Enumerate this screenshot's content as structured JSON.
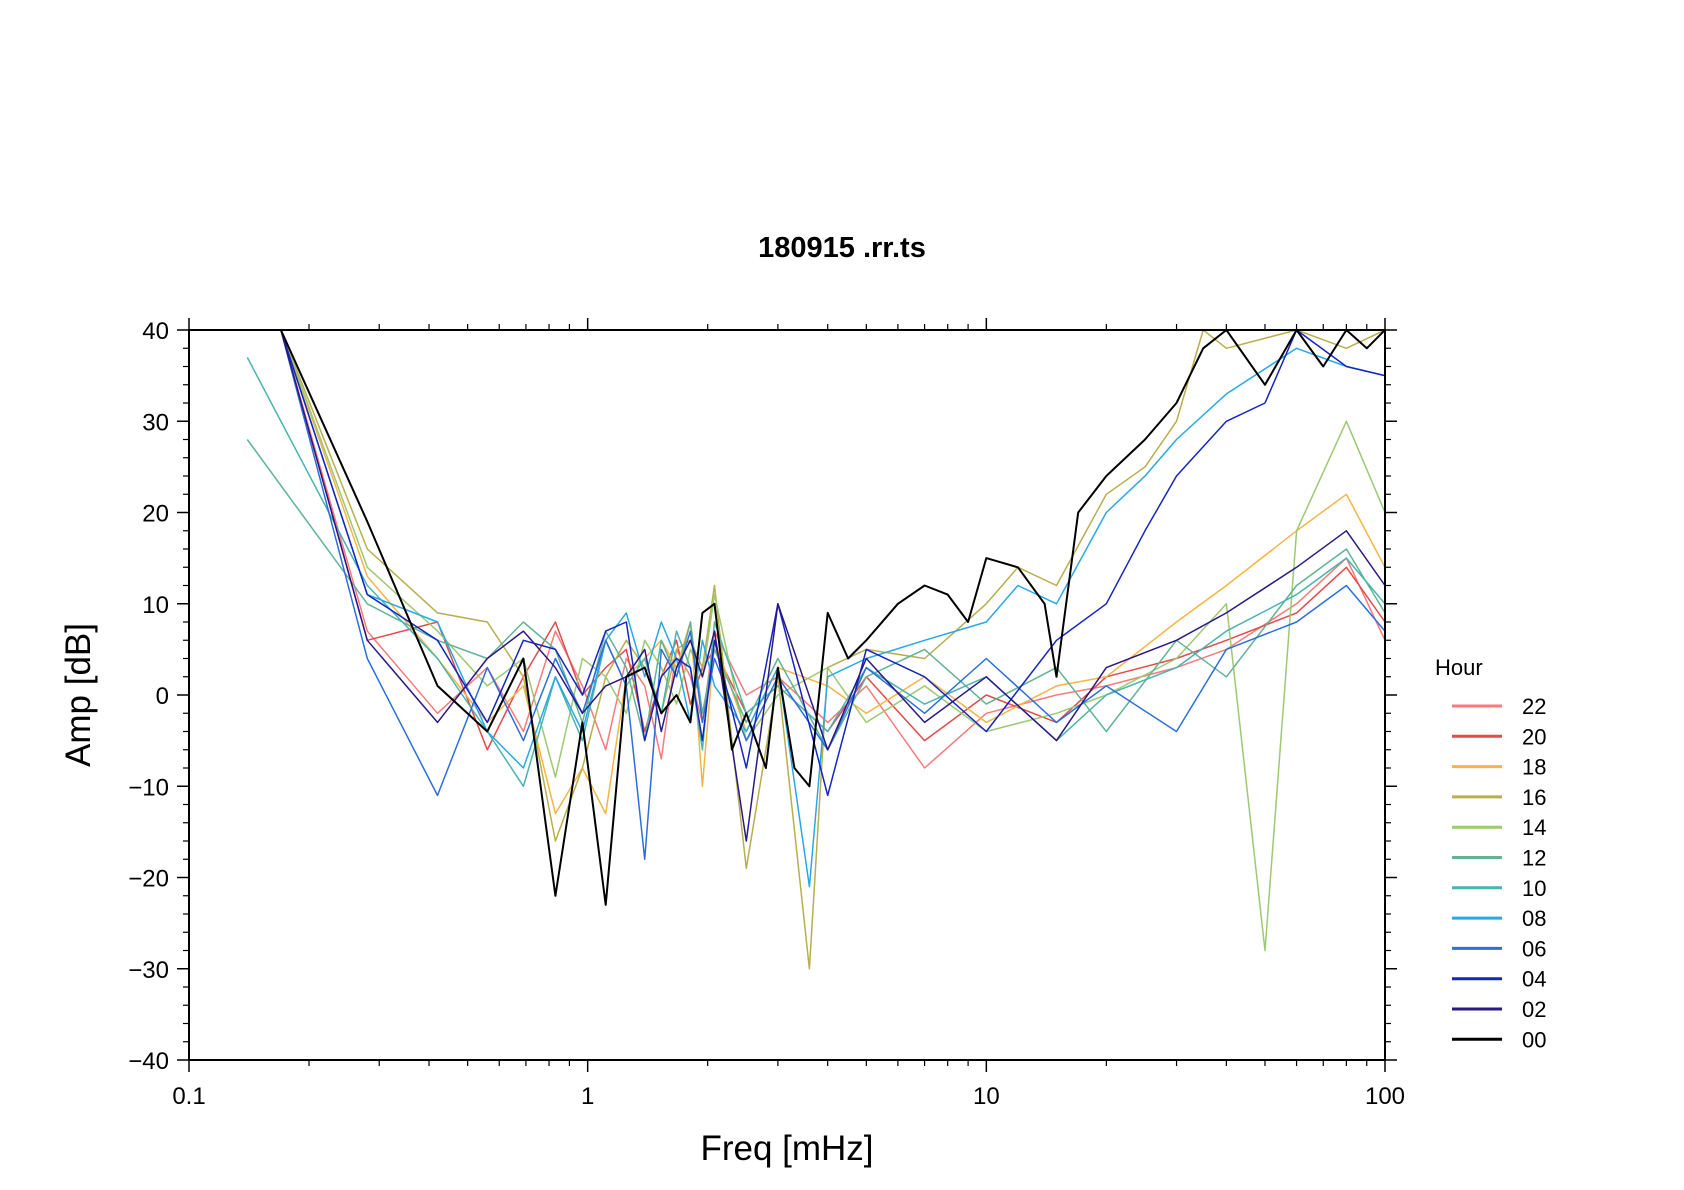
{
  "chart_data": {
    "type": "line",
    "title": "180915 .rr.ts",
    "xlabel": "Freq [mHz]",
    "ylabel": "Amp [dB]",
    "x_scale": "log",
    "xlim": [
      0.1,
      100
    ],
    "ylim": [
      -40,
      40
    ],
    "x_ticks": [
      {
        "value": 0.1,
        "label": "0.1"
      },
      {
        "value": 1,
        "label": "1"
      },
      {
        "value": 10,
        "label": "10"
      },
      {
        "value": 100,
        "label": "100"
      }
    ],
    "y_ticks": [
      {
        "value": 40,
        "label": "40"
      },
      {
        "value": 30,
        "label": "30"
      },
      {
        "value": 20,
        "label": "20"
      },
      {
        "value": 10,
        "label": "10"
      },
      {
        "value": 0,
        "label": "0"
      },
      {
        "value": -10,
        "label": "−10"
      },
      {
        "value": -20,
        "label": "−20"
      },
      {
        "value": -30,
        "label": "−30"
      },
      {
        "value": -40,
        "label": "−40"
      }
    ],
    "grid": false,
    "legend": {
      "title": "Hour",
      "position": "right"
    },
    "series": [
      {
        "name": "22",
        "color": "#f77b7b",
        "x": [
          0.14,
          0.17,
          0.28,
          0.42,
          0.56,
          0.69,
          0.83,
          0.97,
          1.11,
          1.25,
          1.39,
          1.53,
          1.67,
          1.81,
          1.94,
          2.08,
          2.5,
          3.0,
          4.0,
          5.0,
          7.0,
          10.0,
          15.0,
          20.0,
          30.0,
          40.0,
          60.0,
          80.0,
          100.0
        ],
        "y": [
          40,
          40,
          7,
          -2,
          3,
          -4,
          7,
          1,
          -6,
          4,
          1,
          -7,
          5,
          2,
          -3,
          7,
          0,
          2,
          -3,
          1,
          -8,
          -2,
          0,
          1,
          3,
          5,
          10,
          15,
          6
        ]
      },
      {
        "name": "20",
        "color": "#e34a4a",
        "x": [
          0.14,
          0.17,
          0.28,
          0.42,
          0.56,
          0.69,
          0.83,
          0.97,
          1.11,
          1.25,
          1.39,
          1.53,
          1.67,
          1.81,
          1.94,
          2.08,
          2.5,
          3.0,
          4.0,
          5.0,
          7.0,
          10.0,
          15.0,
          20.0,
          30.0,
          40.0,
          60.0,
          80.0,
          100.0
        ],
        "y": [
          40,
          40,
          6,
          8,
          -6,
          2,
          8,
          0,
          3,
          5,
          -4,
          2,
          6,
          -1,
          3,
          5,
          -2,
          1,
          -4,
          2,
          -5,
          0,
          -3,
          2,
          4,
          6,
          9,
          14,
          8
        ]
      },
      {
        "name": "18",
        "color": "#f5b545",
        "x": [
          0.14,
          0.17,
          0.28,
          0.42,
          0.56,
          0.69,
          0.83,
          0.97,
          1.11,
          1.25,
          1.39,
          1.53,
          1.67,
          1.81,
          1.94,
          2.08,
          2.5,
          3.0,
          4.0,
          5.0,
          7.0,
          10.0,
          15.0,
          20.0,
          30.0,
          40.0,
          60.0,
          80.0,
          100.0
        ],
        "y": [
          40,
          40,
          13,
          4,
          -3,
          1,
          -13,
          -8,
          -13,
          2,
          4,
          6,
          3,
          8,
          -10,
          6,
          -4,
          3,
          1,
          -2,
          2,
          -3,
          1,
          2,
          8,
          12,
          18,
          22,
          14
        ]
      },
      {
        "name": "16",
        "color": "#b8ae4c",
        "x": [
          0.14,
          0.17,
          0.28,
          0.42,
          0.56,
          0.69,
          0.83,
          0.97,
          1.11,
          1.25,
          1.39,
          1.53,
          1.67,
          1.81,
          1.94,
          2.08,
          2.5,
          3.0,
          3.6,
          4.0,
          5.0,
          7.0,
          10.0,
          12.0,
          15.0,
          20.0,
          25.0,
          30.0,
          35.0,
          40.0,
          60.0,
          80.0,
          100.0
        ],
        "y": [
          40,
          40,
          16,
          9,
          8,
          2,
          -16,
          -8,
          2,
          6,
          3,
          -2,
          5,
          6,
          3,
          12,
          -19,
          2,
          -30,
          3,
          5,
          4,
          10,
          14,
          12,
          22,
          25,
          30,
          40,
          38,
          40,
          38,
          40
        ]
      },
      {
        "name": "14",
        "color": "#9cc972",
        "x": [
          0.14,
          0.17,
          0.28,
          0.42,
          0.56,
          0.69,
          0.83,
          0.97,
          1.11,
          1.25,
          1.39,
          1.53,
          1.67,
          1.81,
          1.94,
          2.08,
          2.5,
          3.0,
          4.0,
          5.0,
          7.0,
          10.0,
          15.0,
          20.0,
          30.0,
          40.0,
          50.0,
          60.0,
          80.0,
          100.0
        ],
        "y": [
          40,
          40,
          14,
          7,
          1,
          4,
          -9,
          4,
          2,
          -2,
          6,
          3,
          -1,
          5,
          2,
          11,
          -5,
          0,
          3,
          -3,
          1,
          -4,
          -2,
          0,
          4,
          10,
          -28,
          18,
          30,
          20
        ]
      },
      {
        "name": "12",
        "color": "#61b394",
        "x": [
          0.14,
          0.28,
          0.42,
          0.56,
          0.69,
          0.83,
          0.97,
          1.11,
          1.25,
          1.39,
          1.53,
          1.67,
          1.81,
          1.94,
          2.08,
          2.5,
          3.0,
          4.0,
          5.0,
          7.0,
          10.0,
          15.0,
          20.0,
          30.0,
          40.0,
          60.0,
          80.0,
          100.0
        ],
        "y": [
          28,
          10,
          6,
          4,
          8,
          5,
          -3,
          7,
          3,
          -5,
          6,
          2,
          8,
          -2,
          5,
          -3,
          4,
          -6,
          2,
          5,
          -1,
          3,
          -4,
          6,
          2,
          12,
          16,
          9
        ]
      },
      {
        "name": "10",
        "color": "#48b4b0",
        "x": [
          0.14,
          0.28,
          0.42,
          0.56,
          0.69,
          0.83,
          0.97,
          1.11,
          1.25,
          1.39,
          1.53,
          1.67,
          1.81,
          1.94,
          2.08,
          2.5,
          3.0,
          4.0,
          5.0,
          7.0,
          10.0,
          15.0,
          20.0,
          30.0,
          40.0,
          60.0,
          80.0,
          100.0
        ],
        "y": [
          37,
          12,
          4,
          -4,
          -10,
          2,
          -5,
          6,
          1,
          4,
          -2,
          7,
          3,
          -6,
          8,
          -2,
          1,
          -4,
          3,
          -1,
          2,
          -5,
          0,
          3,
          7,
          11,
          15,
          10
        ]
      },
      {
        "name": "08",
        "color": "#29a8e8",
        "x": [
          0.14,
          0.17,
          0.28,
          0.42,
          0.56,
          0.69,
          0.83,
          0.97,
          1.11,
          1.25,
          1.39,
          1.53,
          1.67,
          1.81,
          1.94,
          2.08,
          2.5,
          3.0,
          3.6,
          4.0,
          5.0,
          7.0,
          10.0,
          12.0,
          15.0,
          20.0,
          25.0,
          30.0,
          40.0,
          60.0,
          80.0,
          100.0
        ],
        "y": [
          40,
          40,
          11,
          8,
          -4,
          -8,
          2,
          -4,
          6,
          9,
          2,
          8,
          4,
          -3,
          6,
          1,
          -4,
          3,
          -21,
          2,
          4,
          6,
          8,
          12,
          10,
          20,
          24,
          28,
          33,
          38,
          36,
          35
        ]
      },
      {
        "name": "06",
        "color": "#2b6fdd",
        "x": [
          0.14,
          0.17,
          0.28,
          0.42,
          0.56,
          0.69,
          0.83,
          0.97,
          1.11,
          1.25,
          1.39,
          1.53,
          1.67,
          1.81,
          1.94,
          2.08,
          2.5,
          3.0,
          4.0,
          5.0,
          7.0,
          10.0,
          15.0,
          20.0,
          30.0,
          40.0,
          60.0,
          80.0,
          100.0
        ],
        "y": [
          40,
          40,
          4,
          -11,
          3,
          -5,
          4,
          -2,
          6,
          1,
          -18,
          5,
          2,
          7,
          -3,
          4,
          -5,
          2,
          -6,
          3,
          -2,
          4,
          -3,
          1,
          -4,
          5,
          8,
          12,
          7
        ]
      },
      {
        "name": "04",
        "color": "#1425c2",
        "x": [
          0.14,
          0.17,
          0.28,
          0.42,
          0.56,
          0.69,
          0.83,
          0.97,
          1.11,
          1.25,
          1.39,
          1.53,
          1.67,
          1.81,
          1.94,
          2.08,
          2.5,
          3.0,
          4.0,
          5.0,
          7.0,
          10.0,
          15.0,
          20.0,
          25.0,
          30.0,
          40.0,
          50.0,
          60.0,
          80.0,
          100.0
        ],
        "y": [
          40,
          40,
          11,
          6,
          -3,
          6,
          5,
          0,
          7,
          8,
          -5,
          2,
          4,
          3,
          -5,
          6,
          -8,
          10,
          -11,
          5,
          2,
          -4,
          6,
          10,
          18,
          24,
          30,
          32,
          40,
          36,
          35
        ]
      },
      {
        "name": "02",
        "color": "#2b1884",
        "x": [
          0.14,
          0.17,
          0.28,
          0.42,
          0.56,
          0.69,
          0.83,
          0.97,
          1.11,
          1.25,
          1.39,
          1.53,
          1.67,
          1.81,
          1.94,
          2.08,
          2.5,
          3.0,
          4.0,
          5.0,
          7.0,
          10.0,
          15.0,
          20.0,
          30.0,
          40.0,
          60.0,
          80.0,
          100.0
        ],
        "y": [
          40,
          40,
          6,
          -3,
          4,
          7,
          3,
          -2,
          1,
          2,
          5,
          -4,
          3,
          6,
          2,
          7,
          -16,
          10,
          -6,
          4,
          -3,
          2,
          -5,
          3,
          6,
          9,
          14,
          18,
          12
        ]
      },
      {
        "name": "00",
        "color": "#000000",
        "x": [
          0.17,
          0.28,
          0.42,
          0.56,
          0.69,
          0.83,
          0.97,
          1.11,
          1.25,
          1.39,
          1.53,
          1.67,
          1.81,
          1.94,
          2.08,
          2.3,
          2.5,
          2.8,
          3.0,
          3.3,
          3.6,
          4.0,
          4.5,
          5.0,
          6.0,
          7.0,
          8.0,
          9.0,
          10.0,
          12.0,
          14.0,
          15.0,
          17.0,
          20.0,
          25.0,
          30.0,
          35.0,
          40.0,
          50.0,
          60.0,
          70.0,
          80.0,
          90.0,
          100.0
        ],
        "y": [
          40,
          19,
          1,
          -4,
          4,
          -22,
          -3,
          -23,
          2,
          3,
          -2,
          0,
          -3,
          9,
          10,
          -6,
          -2,
          -8,
          3,
          -8,
          -10,
          9,
          4,
          6,
          10,
          12,
          11,
          8,
          15,
          14,
          10,
          2,
          20,
          24,
          28,
          32,
          38,
          40,
          34,
          40,
          36,
          40,
          38,
          40
        ]
      }
    ]
  }
}
